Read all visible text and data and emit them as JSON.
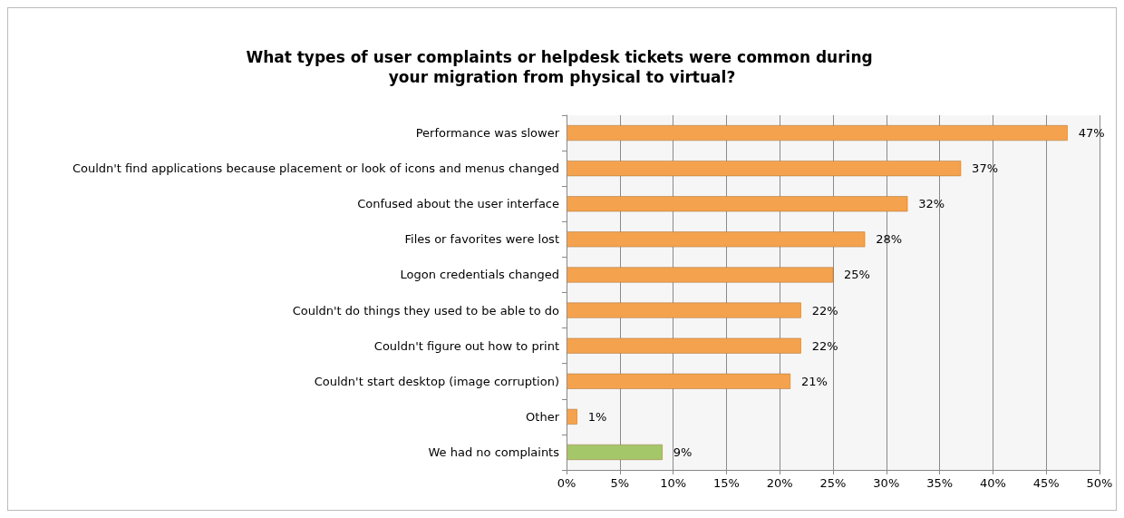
{
  "chart_data": {
    "type": "bar",
    "orientation": "horizontal",
    "title": "What types of user complaints or helpdesk tickets were common during your migration from physical to virtual?",
    "categories": [
      "Performance was slower",
      "Couldn't find applications because placement or look of icons and menus changed",
      "Confused about the user interface",
      "Files or favorites were lost",
      "Logon credentials changed",
      "Couldn't do things they used to be able to do",
      "Couldn't figure out how to print",
      "Couldn't start desktop (image corruption)",
      "Other",
      "We had no complaints"
    ],
    "values": [
      47,
      37,
      32,
      28,
      25,
      22,
      22,
      21,
      1,
      9
    ],
    "colors": [
      "#f5a24e",
      "#f5a24e",
      "#f5a24e",
      "#f5a24e",
      "#f5a24e",
      "#f5a24e",
      "#f5a24e",
      "#f5a24e",
      "#f5a24e",
      "#a3c769"
    ],
    "value_labels": [
      "47%",
      "37%",
      "32%",
      "28%",
      "25%",
      "22%",
      "22%",
      "21%",
      "1%",
      "9%"
    ],
    "xlim": [
      0,
      50
    ],
    "xticks": [
      {
        "value": 0,
        "label": "0%"
      },
      {
        "value": 5,
        "label": "5%"
      },
      {
        "value": 10,
        "label": "10%"
      },
      {
        "value": 15,
        "label": "15%"
      },
      {
        "value": 20,
        "label": "20%"
      },
      {
        "value": 25,
        "label": "25%"
      },
      {
        "value": 30,
        "label": "30%"
      },
      {
        "value": 35,
        "label": "35%"
      },
      {
        "value": 40,
        "label": "40%"
      },
      {
        "value": 45,
        "label": "45%"
      },
      {
        "value": 50,
        "label": "50%"
      }
    ],
    "grid": "x"
  }
}
